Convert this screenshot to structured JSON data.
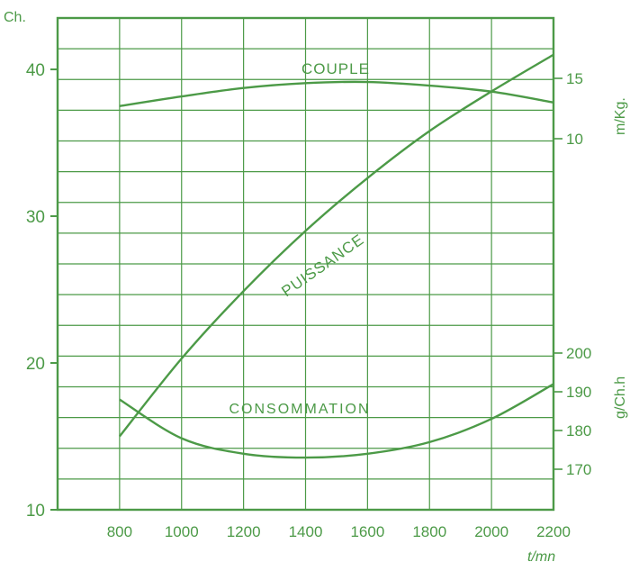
{
  "chart_data": {
    "type": "line",
    "x": {
      "label": "t/mn",
      "ticks": [
        800,
        1000,
        1200,
        1400,
        1600,
        1800,
        2000,
        2200
      ],
      "range": [
        600,
        2200
      ]
    },
    "axes": {
      "power": {
        "unit_label": "Ch.",
        "ticks": [
          10,
          20,
          30,
          40
        ],
        "range": [
          10,
          43.5
        ]
      },
      "torque": {
        "unit_label": "m/Kg.",
        "ticks": [
          10,
          15
        ]
      },
      "consumption": {
        "unit_label": "g/Ch.h",
        "ticks": [
          170,
          180,
          190,
          200
        ]
      }
    },
    "grid": true,
    "series": [
      {
        "name": "COUPLE",
        "axis": "torque",
        "x": [
          800,
          1000,
          1200,
          1400,
          1600,
          1800,
          2000,
          2200
        ],
        "y": [
          12.7,
          13.5,
          14.2,
          14.6,
          14.7,
          14.4,
          13.9,
          13.0
        ]
      },
      {
        "name": "PUISSANCE",
        "axis": "power",
        "x": [
          800,
          1000,
          1200,
          1400,
          1600,
          1800,
          2000,
          2200
        ],
        "y": [
          15.0,
          20.3,
          24.9,
          29.0,
          32.6,
          35.8,
          38.5,
          41.0
        ]
      },
      {
        "name": "CONSOMMATION",
        "axis": "consumption",
        "x": [
          800,
          1000,
          1200,
          1400,
          1600,
          1800,
          2000,
          2200
        ],
        "y": [
          188,
          178,
          174,
          173,
          174,
          177,
          183,
          192
        ]
      }
    ]
  }
}
